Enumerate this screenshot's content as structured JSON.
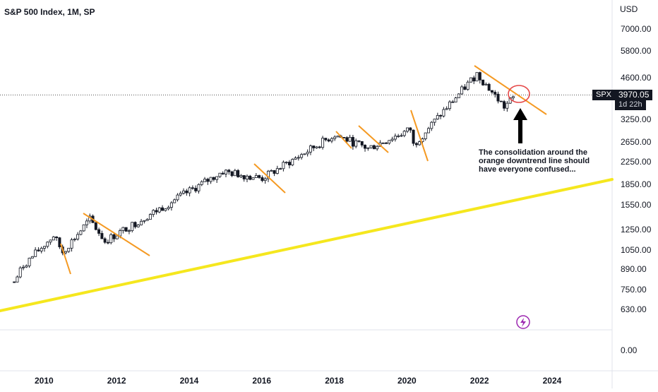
{
  "chart_data": {
    "type": "candlestick",
    "title": "S&P 500 Index, 1M, SP",
    "currency": "USD",
    "scale": "log",
    "y_ticks": [
      "7000.00",
      "5800.00",
      "4600.00",
      "3250.00",
      "2650.00",
      "2250.00",
      "1850.00",
      "1550.00",
      "1250.00",
      "1050.00",
      "890.00",
      "750.00",
      "630.00",
      "0.00"
    ],
    "x_ticks": [
      "2010",
      "2012",
      "2014",
      "2016",
      "2018",
      "2020",
      "2022",
      "2024"
    ],
    "last_price": {
      "symbol": "SPX",
      "value": "3970.05",
      "countdown": "1d 22h"
    },
    "closes_approx": [
      {
        "date": "2009-03",
        "close": 797
      },
      {
        "date": "2009-06",
        "close": 919
      },
      {
        "date": "2010-04",
        "close": 1186
      },
      {
        "date": "2010-07",
        "close": 1030
      },
      {
        "date": "2011-04",
        "close": 1363
      },
      {
        "date": "2011-09",
        "close": 1131
      },
      {
        "date": "2012-12",
        "close": 1426
      },
      {
        "date": "2014-12",
        "close": 2058
      },
      {
        "date": "2016-01",
        "close": 1940
      },
      {
        "date": "2018-01",
        "close": 2823
      },
      {
        "date": "2018-12",
        "close": 2506
      },
      {
        "date": "2020-02",
        "close": 2954
      },
      {
        "date": "2020-03",
        "close": 2585
      },
      {
        "date": "2021-12",
        "close": 4766
      },
      {
        "date": "2022-09",
        "close": 3586
      },
      {
        "date": "2023-01",
        "close": 3970
      }
    ],
    "annotation": "The consolidation around the orange downtrend line should have everyone confused...",
    "colors": {
      "candle": "#131722",
      "trend": "#f59a23",
      "support": "#f5e71e",
      "circle": "#e54848",
      "arrow": "#000000"
    }
  }
}
